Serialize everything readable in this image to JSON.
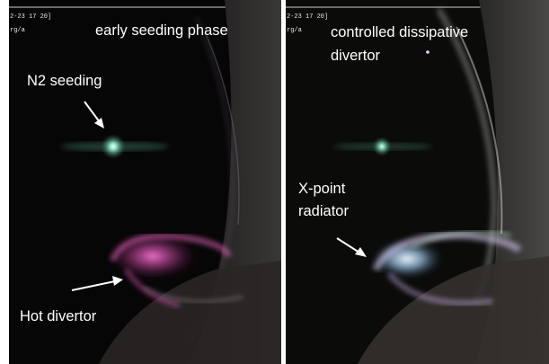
{
  "left_panel": {
    "timestamp": "2-23 17 20]",
    "timestamp_sub": "rg/a",
    "title": "early seeding phase",
    "annotations": {
      "seeding": "N2 seeding",
      "divertor": "Hot divertor"
    }
  },
  "right_panel": {
    "timestamp": "2-23 17 20]",
    "timestamp_sub": "rg/a",
    "title_line1": "controlled dissipative",
    "title_line2": "divertor",
    "annotations": {
      "radiator_line1": "X-point",
      "radiator_line2": "radiator"
    }
  },
  "colors": {
    "background": "#000000",
    "text": "#ffffff",
    "hot_divertor_glow": "#e24fb8",
    "radiator_glow": "#bfe9ff",
    "seeding_glow": "#b8ffe8"
  }
}
